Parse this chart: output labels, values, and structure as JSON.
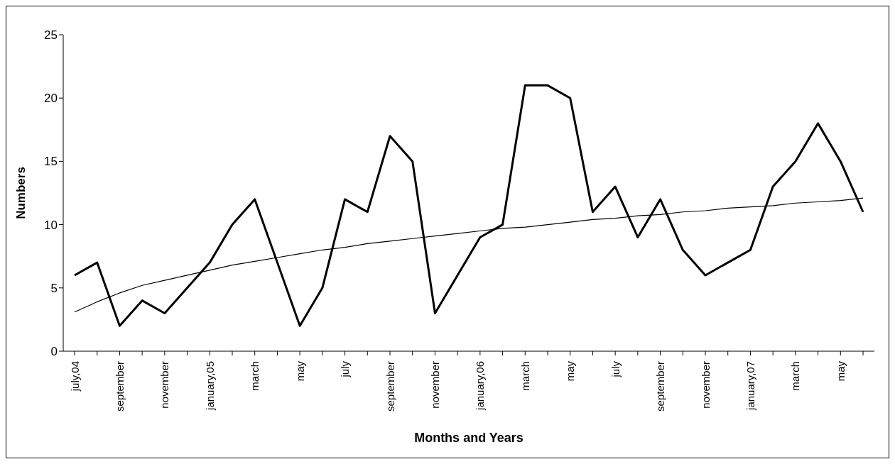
{
  "chart_data": {
    "type": "line",
    "xlabel": "Months and Years",
    "ylabel": "Numbers",
    "categories": [
      "july,04",
      null,
      "september",
      null,
      "november",
      null,
      "january,05",
      null,
      "march",
      null,
      "may",
      null,
      "july",
      null,
      "september",
      null,
      "november",
      null,
      "january,06",
      null,
      "march",
      null,
      "may",
      null,
      "july",
      null,
      "september",
      null,
      "november",
      null,
      "january,07",
      null,
      "march",
      null,
      "may",
      null
    ],
    "series": [
      {
        "color": "#000000",
        "values": [
          6,
          7,
          2,
          4,
          3,
          5,
          7,
          10,
          12,
          7,
          2,
          5,
          12,
          11,
          17,
          15,
          3,
          6,
          9,
          10,
          21,
          21,
          20,
          11,
          13,
          9,
          12,
          8,
          6,
          7,
          8,
          13,
          15,
          18,
          15,
          11
        ]
      },
      {
        "type": "line",
        "color": "#000000",
        "values": [
          3.1,
          3.9,
          4.6,
          5.2,
          5.6,
          6.0,
          6.4,
          6.8,
          7.1,
          7.4,
          7.7,
          8.0,
          8.2,
          8.5,
          8.7,
          8.9,
          9.1,
          9.3,
          9.5,
          9.7,
          9.8,
          10.0,
          10.2,
          10.4,
          10.5,
          10.7,
          10.8,
          11.0,
          11.1,
          11.3,
          11.4,
          11.5,
          11.7,
          11.8,
          11.9,
          12.1
        ]
      }
    ],
    "ylim": [
      0,
      25
    ],
    "yticks": [
      0,
      5,
      10,
      15,
      20,
      25
    ],
    "grid": false,
    "marker": "none",
    "line_style": "solid"
  }
}
